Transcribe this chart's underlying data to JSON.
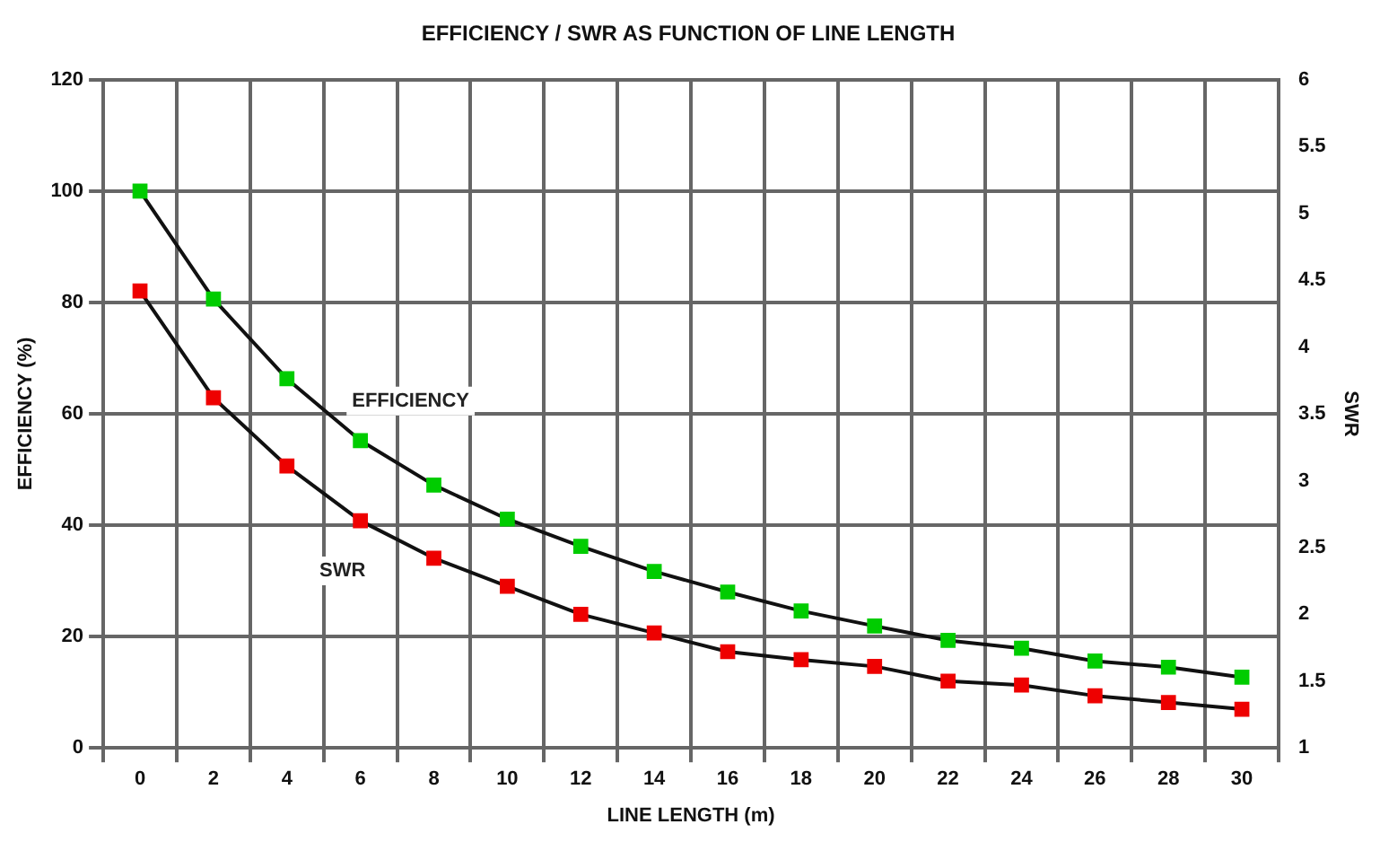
{
  "chart_data": {
    "type": "line",
    "title": "EFFICIENCY / SWR AS FUNCTION OF LINE LENGTH",
    "xlabel": "LINE LENGTH (m)",
    "ylabel": "EFFICIENCY (%)",
    "y2label": "SWR",
    "x": [
      0,
      2,
      4,
      6,
      8,
      10,
      12,
      14,
      16,
      18,
      20,
      22,
      24,
      26,
      28,
      30
    ],
    "series": [
      {
        "name": "EFFICIENCY",
        "color": "#00cc00",
        "values": [
          100,
          80.6,
          66.3,
          55.2,
          47.2,
          41.1,
          36.2,
          31.7,
          28.0,
          24.6,
          21.9,
          19.3,
          17.9,
          15.6,
          14.5,
          12.7
        ]
      },
      {
        "name": "SWR",
        "color": "#ee0000",
        "axis": "y2",
        "values": [
          4.42,
          3.62,
          3.11,
          2.7,
          2.42,
          2.21,
          2.0,
          1.86,
          1.72,
          1.66,
          1.61,
          1.5,
          1.47,
          1.39,
          1.34,
          1.29
        ]
      }
    ],
    "xlim": [
      -1,
      31
    ],
    "xticks": [
      {
        "value": -1,
        "label": null
      },
      0,
      {
        "value": 1,
        "label": null
      },
      2,
      {
        "value": 3,
        "label": null
      },
      4,
      {
        "value": 5,
        "label": null
      },
      6,
      {
        "value": 7,
        "label": null
      },
      8,
      {
        "value": 9,
        "label": null
      },
      10,
      {
        "value": 11,
        "label": null
      },
      12,
      {
        "value": 13,
        "label": null
      },
      14,
      {
        "value": 15,
        "label": null
      },
      16,
      {
        "value": 17,
        "label": null
      },
      18,
      {
        "value": 19,
        "label": null
      },
      20,
      {
        "value": 21,
        "label": null
      },
      22,
      {
        "value": 23,
        "label": null
      },
      24,
      {
        "value": 25,
        "label": null
      },
      26,
      {
        "value": 27,
        "label": null
      },
      28,
      {
        "value": 29,
        "label": null
      },
      30,
      {
        "value": 31,
        "label": null
      }
    ],
    "ylim": [
      0,
      120
    ],
    "yticks": [
      0,
      20,
      40,
      60,
      80,
      100,
      120
    ],
    "y2lim": [
      1,
      6
    ],
    "y2ticks": [
      1,
      1.5,
      2,
      2.5,
      3,
      3.5,
      4,
      4.5,
      5,
      5.5,
      6
    ],
    "grid": true,
    "legend": false,
    "marker": "square",
    "line_style": "solid"
  }
}
